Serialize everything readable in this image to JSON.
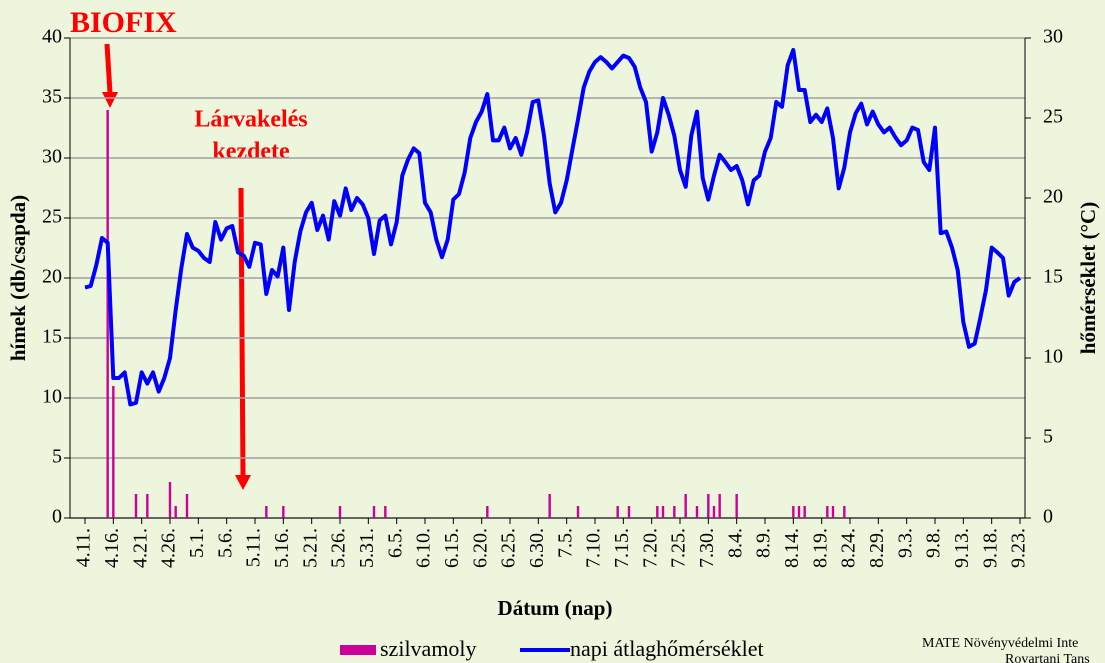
{
  "chart_data": {
    "type": "bar_line",
    "annotations": [
      "BIOFIX",
      "Lárvakelés",
      "kezdete"
    ],
    "y_label": "hímek (db/csapda)",
    "y2_label": "hőmérséklet (°C)",
    "x_label": "Dátum (nap)",
    "credit": [
      "MATE Növényvédelmi Inte",
      "Rovartani Tans"
    ],
    "categories": [
      "4.11.",
      null,
      null,
      null,
      null,
      "4.16.",
      null,
      null,
      null,
      null,
      "4.21.",
      null,
      null,
      null,
      null,
      "4.26.",
      null,
      null,
      null,
      null,
      "5.1.",
      null,
      null,
      null,
      null,
      "5.6.",
      null,
      null,
      null,
      null,
      "5.11.",
      null,
      null,
      null,
      null,
      "5.16.",
      null,
      null,
      null,
      null,
      "5.21.",
      null,
      null,
      null,
      null,
      "5.26.",
      null,
      null,
      null,
      null,
      "5.31.",
      null,
      null,
      null,
      null,
      "6.5.",
      null,
      null,
      null,
      null,
      "6.10.",
      null,
      null,
      null,
      null,
      "6.15.",
      null,
      null,
      null,
      null,
      "6.20.",
      null,
      null,
      null,
      null,
      "6.25.",
      null,
      null,
      null,
      null,
      "6.30.",
      null,
      null,
      null,
      null,
      "7.5.",
      null,
      null,
      null,
      null,
      "7.10.",
      null,
      null,
      null,
      null,
      "7.15.",
      null,
      null,
      null,
      null,
      "7.20.",
      null,
      null,
      null,
      null,
      "7.25.",
      null,
      null,
      null,
      null,
      "7.30.",
      null,
      null,
      null,
      null,
      "8.4.",
      null,
      null,
      null,
      null,
      "8.9.",
      null,
      null,
      null,
      null,
      "8.14.",
      null,
      null,
      null,
      null,
      "8.19.",
      null,
      null,
      null,
      null,
      "8.24.",
      null,
      null,
      null,
      null,
      "8.29.",
      null,
      null,
      null,
      null,
      "9.3.",
      null,
      null,
      null,
      null,
      "9.8.",
      null,
      null,
      null,
      null,
      "9.13.",
      null,
      null,
      null,
      null,
      "9.18.",
      null,
      null,
      null,
      null,
      "9.23."
    ],
    "series": [
      {
        "name": "szilvamoly",
        "type": "bar",
        "color": "#cc0099",
        "values": [
          0,
          0,
          0,
          0,
          34,
          11,
          0,
          0,
          0,
          2,
          0,
          2,
          0,
          0,
          0,
          3,
          1,
          0,
          2,
          0,
          0,
          0,
          0,
          0,
          0,
          0,
          0,
          0,
          0,
          0,
          0,
          0,
          1,
          0,
          0,
          1,
          0,
          0,
          0,
          0,
          0,
          0,
          0,
          0,
          0,
          1,
          0,
          0,
          0,
          0,
          0,
          1,
          0,
          1,
          0,
          0,
          0,
          0,
          0,
          0,
          0,
          0,
          0,
          0,
          0,
          0,
          0,
          0,
          0,
          0,
          0,
          1,
          0,
          0,
          0,
          0,
          0,
          0,
          0,
          0,
          0,
          0,
          2,
          0,
          0,
          0,
          0,
          1,
          0,
          0,
          0,
          0,
          0,
          0,
          1,
          0,
          1,
          0,
          0,
          0,
          0,
          1,
          1,
          0,
          1,
          0,
          2,
          0,
          1,
          0,
          2,
          1,
          2,
          0,
          0,
          2,
          0,
          0,
          0,
          0,
          0,
          0,
          0,
          0,
          0,
          1,
          1,
          1,
          0,
          0,
          0,
          1,
          1,
          0,
          1,
          0,
          0,
          0,
          0,
          0,
          0,
          0,
          0,
          0,
          0,
          0,
          0,
          0,
          0,
          0,
          0,
          0,
          0,
          0,
          0,
          0,
          0,
          0,
          0,
          0,
          0,
          0,
          0,
          0,
          0,
          0
        ]
      },
      {
        "name": "napi átlaghőmérséklet",
        "type": "line",
        "axis": "y2",
        "color": "#0000ff",
        "values": [
          14.4,
          14.5,
          15.8,
          17.5,
          17.2,
          8.75,
          8.75,
          9.1,
          7.1,
          7.2,
          9.1,
          8.4,
          9.1,
          7.9,
          8.75,
          10,
          13,
          15.6,
          17.75,
          16.9,
          16.7,
          16.25,
          16,
          18.5,
          17.4,
          18.1,
          18.25,
          16.6,
          16.4,
          15.7,
          17.2,
          17.1,
          14,
          15.5,
          15.1,
          16.9,
          13,
          16,
          17.9,
          19.1,
          19.7,
          18,
          18.9,
          17.4,
          19.8,
          18.9,
          20.6,
          19.25,
          20,
          19.6,
          18.75,
          16.5,
          18.6,
          18.9,
          17.1,
          18.5,
          21.4,
          22.4,
          23.1,
          22.8,
          19.7,
          19.1,
          17.4,
          16.3,
          17.4,
          19.9,
          20.25,
          21.6,
          23.75,
          24.75,
          25.4,
          26.5,
          23.6,
          23.6,
          24.4,
          23.1,
          23.75,
          22.7,
          24.1,
          26,
          26.1,
          23.9,
          20.9,
          19.1,
          19.7,
          21.1,
          23,
          24.9,
          26.9,
          27.9,
          28.5,
          28.8,
          28.5,
          28.1,
          28.5,
          28.9,
          28.75,
          28.2,
          26.9,
          26,
          22.9,
          24.1,
          26.25,
          25.2,
          23.9,
          21.75,
          20.7,
          23.9,
          25.4,
          21.25,
          19.9,
          21.4,
          22.7,
          22.25,
          21.75,
          22,
          21.1,
          19.6,
          21.1,
          21.4,
          22.9,
          23.75,
          26,
          25.7,
          28.3,
          29.25,
          26.75,
          26.75,
          24.75,
          25.2,
          24.75,
          25.6,
          23.75,
          20.6,
          21.9,
          24.1,
          25.3,
          25.9,
          24.6,
          25.4,
          24.6,
          24.1,
          24.4,
          23.8,
          23.3,
          23.6,
          24.4,
          24.25,
          22.25,
          21.75,
          24.4,
          17.8,
          17.9,
          16.9,
          15.5,
          12.25,
          10.7,
          10.9,
          12.5,
          14.25,
          16.9,
          16.6,
          16.25,
          13.9,
          14.75,
          15
        ]
      }
    ],
    "ylim": [
      0,
      40
    ],
    "yticks": [
      0,
      5,
      10,
      15,
      20,
      25,
      30,
      35,
      40
    ],
    "y2lim": [
      0,
      30
    ],
    "y2ticks": [
      0,
      5,
      10,
      15,
      20,
      25,
      30
    ],
    "grid": true,
    "legend": "bottom"
  }
}
